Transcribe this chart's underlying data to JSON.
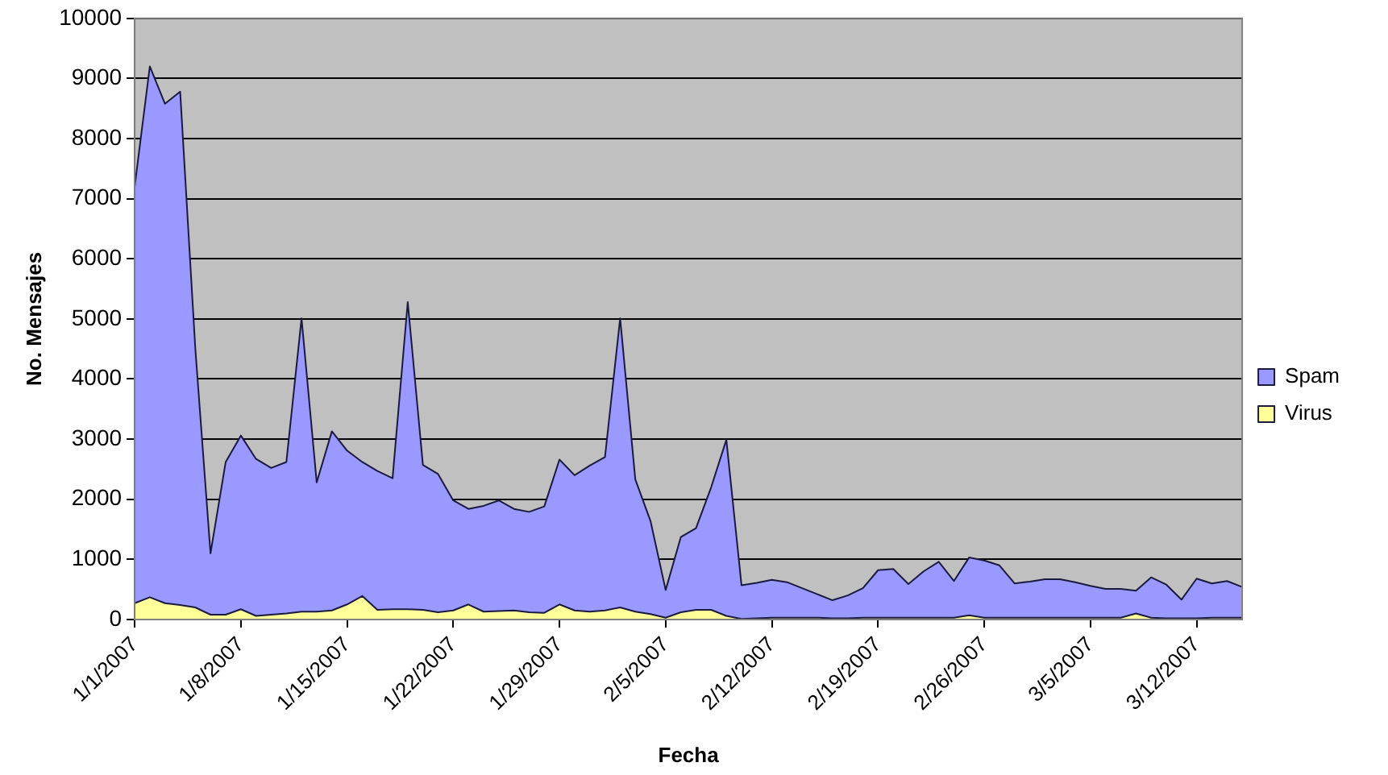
{
  "chart_data": {
    "type": "area",
    "xlabel": "Fecha",
    "ylabel": "No. Mensajes",
    "categories": [
      "1/1/2007",
      null,
      null,
      null,
      null,
      null,
      null,
      "1/8/2007",
      null,
      null,
      null,
      null,
      null,
      null,
      "1/15/2007",
      null,
      null,
      null,
      null,
      null,
      null,
      "1/22/2007",
      null,
      null,
      null,
      null,
      null,
      null,
      "1/29/2007",
      null,
      null,
      null,
      null,
      null,
      null,
      "2/5/2007",
      null,
      null,
      null,
      null,
      null,
      null,
      "2/12/2007",
      null,
      null,
      null,
      null,
      null,
      null,
      "2/19/2007",
      null,
      null,
      null,
      null,
      null,
      null,
      "2/26/2007",
      null,
      null,
      null,
      null,
      null,
      null,
      "3/5/2007",
      null,
      null,
      null,
      null,
      null,
      null,
      "3/12/2007",
      null,
      null,
      null
    ],
    "series": [
      {
        "name": "Spam",
        "color": "#9999ff",
        "values": [
          7200,
          9200,
          8580,
          8780,
          4500,
          1100,
          2620,
          3060,
          2670,
          2520,
          2620,
          5010,
          2280,
          3130,
          2810,
          2620,
          2470,
          2350,
          5280,
          2570,
          2420,
          1980,
          1840,
          1890,
          1980,
          1840,
          1790,
          1880,
          2660,
          2400,
          2560,
          2700,
          5010,
          2330,
          1640,
          490,
          1370,
          1520,
          2200,
          2990,
          570,
          610,
          660,
          620,
          520,
          420,
          320,
          400,
          520,
          820,
          840,
          590,
          800,
          960,
          640,
          1030,
          980,
          900,
          600,
          630,
          670,
          670,
          620,
          560,
          510,
          510,
          480,
          700,
          580,
          330,
          680,
          600,
          640,
          540
        ]
      },
      {
        "name": "Virus",
        "color": "#ffff99",
        "values": [
          270,
          370,
          270,
          240,
          200,
          80,
          80,
          170,
          60,
          80,
          100,
          130,
          130,
          150,
          250,
          390,
          160,
          170,
          170,
          160,
          120,
          150,
          250,
          130,
          140,
          150,
          120,
          110,
          250,
          150,
          130,
          150,
          200,
          130,
          90,
          30,
          120,
          160,
          160,
          60,
          10,
          20,
          30,
          30,
          30,
          30,
          20,
          20,
          30,
          30,
          30,
          30,
          30,
          30,
          30,
          70,
          30,
          30,
          30,
          30,
          30,
          30,
          30,
          30,
          30,
          30,
          100,
          30,
          20,
          20,
          20,
          30,
          30,
          30
        ]
      }
    ],
    "ylim": [
      0,
      10000
    ],
    "yticks": [
      0,
      1000,
      2000,
      3000,
      4000,
      5000,
      6000,
      7000,
      8000,
      9000,
      10000
    ],
    "grid": "y",
    "legend": "right"
  }
}
